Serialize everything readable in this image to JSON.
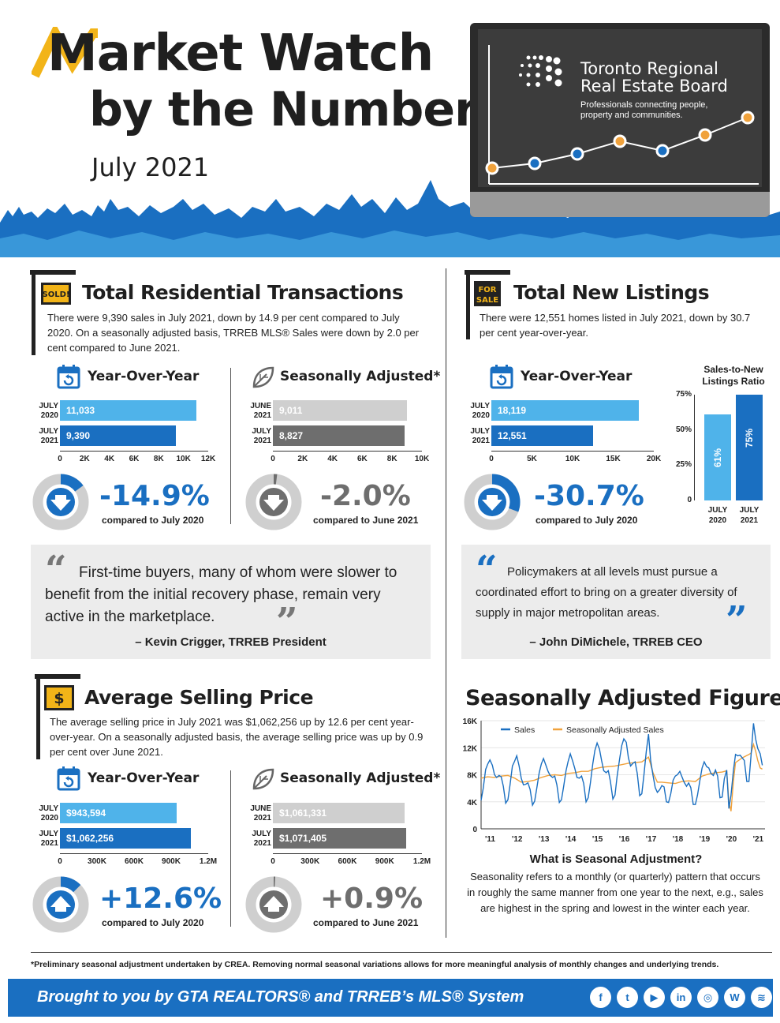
{
  "header": {
    "title_line1": "Market Watch",
    "title_line2": "by the Numbers",
    "month": "July 2021",
    "board_name_line1": "Toronto Regional",
    "board_name_line2": "Real Estate Board",
    "tagline_line1": "Professionals connecting people,",
    "tagline_line2": "property and communities."
  },
  "transactions": {
    "badge": "SOLD!",
    "title": "Total Residential Transactions",
    "description": "There were 9,390 sales in July 2021, down by 14.9 per cent compared to July 2020. On a seasonally adjusted basis, TRREB MLS® Sales were down by 2.0 per cent compared to June 2021.",
    "yoy": {
      "title": "Year-Over-Year",
      "rows": [
        {
          "label_top": "JULY",
          "label_bottom": "2020",
          "value_text": "11,033",
          "value": 11033
        },
        {
          "label_top": "JULY",
          "label_bottom": "2021",
          "value_text": "9,390",
          "value": 9390
        }
      ],
      "ticks": [
        "0",
        "2K",
        "4K",
        "6K",
        "8K",
        "10K",
        "12K"
      ],
      "max": 12000,
      "pct": "-14.9%",
      "compare": "compared to July 2020"
    },
    "sa": {
      "title": "Seasonally Adjusted*",
      "rows": [
        {
          "label_top": "JUNE",
          "label_bottom": "2021",
          "value_text": "9,011",
          "value": 9011
        },
        {
          "label_top": "JULY",
          "label_bottom": "2021",
          "value_text": "8,827",
          "value": 8827
        }
      ],
      "ticks": [
        "0",
        "2K",
        "4K",
        "6K",
        "8K",
        "10K"
      ],
      "max": 10000,
      "pct": "-2.0%",
      "compare": "compared to June 2021"
    }
  },
  "listings": {
    "badge_top": "FOR",
    "badge_bottom": "SALE",
    "title": "Total New Listings",
    "description": "There were 12,551 homes listed in July 2021, down by 30.7 per cent year-over-year.",
    "yoy": {
      "title": "Year-Over-Year",
      "rows": [
        {
          "label_top": "JULY",
          "label_bottom": "2020",
          "value_text": "18,119",
          "value": 18119
        },
        {
          "label_top": "JULY",
          "label_bottom": "2021",
          "value_text": "12,551",
          "value": 12551
        }
      ],
      "ticks": [
        "0",
        "5K",
        "10K",
        "15K",
        "20K"
      ],
      "max": 20000,
      "pct": "-30.7%",
      "compare": "compared to July 2020"
    },
    "ratio": {
      "title_line1": "Sales-to-New",
      "title_line2": "Listings Ratio",
      "yticks": [
        "75%",
        "50%",
        "25%",
        "0"
      ],
      "bars": [
        {
          "label_top": "JULY",
          "label_bottom": "2020",
          "value_text": "61%",
          "value": 61
        },
        {
          "label_top": "JULY",
          "label_bottom": "2021",
          "value_text": "75%",
          "value": 75
        }
      ]
    }
  },
  "quotes": {
    "q1_text": "First-time buyers, many of whom were slower to benefit from the initial recovery phase, remain very active in the marketplace.",
    "q1_author": "– Kevin Crigger, TRREB President",
    "q2_text": "Policymakers at all levels must pursue a coordinated effort to bring on a greater diversity of supply in major metropolitan areas.",
    "q2_author": "– John DiMichele, TRREB CEO"
  },
  "price": {
    "badge": "$",
    "title": "Average Selling Price",
    "description": "The average selling price in July 2021 was $1,062,256 up by 12.6 per cent year-over-year. On a seasonally adjusted basis, the average selling price was up by 0.9 per cent over June 2021.",
    "yoy": {
      "title": "Year-Over-Year",
      "rows": [
        {
          "label_top": "JULY",
          "label_bottom": "2020",
          "value_text": "$943,594",
          "value": 943594
        },
        {
          "label_top": "JULY",
          "label_bottom": "2021",
          "value_text": "$1,062,256",
          "value": 1062256
        }
      ],
      "ticks": [
        "0",
        "300K",
        "600K",
        "900K",
        "1.2M"
      ],
      "max": 1200000,
      "pct": "+12.6%",
      "compare": "compared to July 2020"
    },
    "sa": {
      "title": "Seasonally Adjusted*",
      "rows": [
        {
          "label_top": "JUNE",
          "label_bottom": "2021",
          "value_text": "$1,061,331",
          "value": 1061331
        },
        {
          "label_top": "JULY",
          "label_bottom": "2021",
          "value_text": "$1,071,405",
          "value": 1071405
        }
      ],
      "ticks": [
        "0",
        "300K",
        "600K",
        "900K",
        "1.2M"
      ],
      "max": 1200000,
      "pct": "+0.9%",
      "compare": "compared to June 2021"
    }
  },
  "seasonal": {
    "title": "Seasonally Adjusted Figures",
    "explain_title": "What is Seasonal Adjustment?",
    "explain_text": "Seasonality refers to a monthly (or quarterly) pattern that occurs in roughly the same manner from one year to the next, e.g., sales are highest in the spring and lowest in the winter each year."
  },
  "chart_data": {
    "type": "line",
    "title": "Seasonally Adjusted Figures",
    "x_ticks": [
      "'11",
      "'12",
      "'13",
      "'14",
      "'15",
      "'16",
      "'17",
      "'18",
      "'19",
      "'20",
      "'21"
    ],
    "y_ticks": [
      "0",
      "4K",
      "8K",
      "12K",
      "16K"
    ],
    "ylim": [
      0,
      16000
    ],
    "xlim": [
      2011,
      2021.6
    ],
    "legend_position": "top-left",
    "series": [
      {
        "name": "Sales",
        "color": "#1a6fc1",
        "x": [
          2011.0,
          2011.08,
          2011.17,
          2011.25,
          2011.33,
          2011.42,
          2011.5,
          2011.58,
          2011.67,
          2011.75,
          2011.83,
          2011.92,
          2012.0,
          2012.08,
          2012.17,
          2012.25,
          2012.33,
          2012.42,
          2012.5,
          2012.58,
          2012.67,
          2012.75,
          2012.83,
          2012.92,
          2013.0,
          2013.08,
          2013.17,
          2013.25,
          2013.33,
          2013.42,
          2013.5,
          2013.58,
          2013.67,
          2013.75,
          2013.83,
          2013.92,
          2014.0,
          2014.08,
          2014.17,
          2014.25,
          2014.33,
          2014.42,
          2014.5,
          2014.58,
          2014.67,
          2014.75,
          2014.83,
          2014.92,
          2015.0,
          2015.08,
          2015.17,
          2015.25,
          2015.33,
          2015.42,
          2015.5,
          2015.58,
          2015.67,
          2015.75,
          2015.83,
          2015.92,
          2016.0,
          2016.08,
          2016.17,
          2016.25,
          2016.33,
          2016.42,
          2016.5,
          2016.58,
          2016.67,
          2016.75,
          2016.83,
          2016.92,
          2017.0,
          2017.08,
          2017.17,
          2017.25,
          2017.33,
          2017.42,
          2017.5,
          2017.58,
          2017.67,
          2017.75,
          2017.83,
          2017.92,
          2018.0,
          2018.08,
          2018.17,
          2018.25,
          2018.33,
          2018.42,
          2018.5,
          2018.58,
          2018.67,
          2018.75,
          2018.83,
          2018.92,
          2019.0,
          2019.08,
          2019.17,
          2019.25,
          2019.33,
          2019.42,
          2019.5,
          2019.58,
          2019.67,
          2019.75,
          2019.83,
          2019.92,
          2020.0,
          2020.08,
          2020.17,
          2020.25,
          2020.33,
          2020.42,
          2020.5,
          2020.58,
          2020.67,
          2020.75,
          2020.83,
          2020.92,
          2021.0,
          2021.08,
          2021.17,
          2021.25,
          2021.33,
          2021.42,
          2021.5
        ],
        "values": [
          4200,
          6000,
          8800,
          9600,
          10200,
          9400,
          8000,
          7600,
          7900,
          7700,
          6300,
          3800,
          4300,
          6500,
          9300,
          10000,
          10800,
          9300,
          7500,
          6500,
          6600,
          6800,
          5800,
          3500,
          4100,
          6000,
          8300,
          9600,
          10400,
          9400,
          8500,
          7900,
          7600,
          7800,
          6500,
          3900,
          4300,
          6200,
          8600,
          10000,
          11100,
          10000,
          8900,
          7600,
          7500,
          7800,
          6700,
          4000,
          4600,
          6800,
          9600,
          11600,
          12700,
          11800,
          10100,
          8600,
          8300,
          8600,
          7000,
          4400,
          5000,
          7800,
          10300,
          12300,
          13300,
          12800,
          10500,
          9300,
          9700,
          9900,
          8200,
          4900,
          5200,
          8000,
          11500,
          14000,
          10100,
          7900,
          6100,
          5400,
          5800,
          6400,
          6200,
          4000,
          3900,
          5200,
          7200,
          7800,
          8000,
          8500,
          7700,
          6900,
          6300,
          6800,
          6100,
          3600,
          3600,
          5000,
          7200,
          9000,
          9900,
          9200,
          9000,
          8200,
          7900,
          8700,
          7800,
          4600,
          4700,
          7400,
          8700,
          3000,
          5000,
          8600,
          11000,
          10800,
          10900,
          10500,
          10100,
          7000,
          7000,
          10900,
          15600,
          13300,
          11900,
          11100,
          9400
        ]
      },
      {
        "name": "Seasonally Adjusted Sales",
        "color": "#f0a23c",
        "x": [
          2011.0,
          2011.25,
          2011.5,
          2011.75,
          2012.0,
          2012.25,
          2012.5,
          2012.75,
          2013.0,
          2013.25,
          2013.5,
          2013.75,
          2014.0,
          2014.25,
          2014.5,
          2014.75,
          2015.0,
          2015.25,
          2015.5,
          2015.75,
          2016.0,
          2016.25,
          2016.5,
          2016.75,
          2017.0,
          2017.25,
          2017.42,
          2017.58,
          2017.75,
          2018.0,
          2018.25,
          2018.5,
          2018.75,
          2019.0,
          2019.25,
          2019.5,
          2019.75,
          2020.0,
          2020.17,
          2020.25,
          2020.33,
          2020.42,
          2020.5,
          2020.75,
          2021.0,
          2021.08,
          2021.17,
          2021.25,
          2021.33,
          2021.42,
          2021.5
        ],
        "values": [
          7500,
          7700,
          7600,
          7800,
          7900,
          7500,
          6900,
          7000,
          7200,
          7600,
          7900,
          8000,
          7900,
          8200,
          8300,
          8500,
          8500,
          8900,
          9100,
          9200,
          9300,
          9500,
          9700,
          9800,
          9900,
          10600,
          8300,
          6900,
          6900,
          6800,
          6700,
          7000,
          7100,
          7000,
          7800,
          8100,
          8300,
          8400,
          8600,
          4000,
          2600,
          7000,
          9800,
          10500,
          11000,
          11200,
          12500,
          11500,
          10100,
          9000,
          8827
        ]
      }
    ]
  },
  "footer": {
    "footnote": "*Preliminary seasonal adjustment undertaken by CREA. Removing normal seasonal variations allows for more meaningful analysis of monthly changes and underlying trends.",
    "brought_by": "Brought to you by GTA REALTORS® and TRREB’s MLS® System",
    "social": [
      {
        "icon": "facebook-icon",
        "glyph": "f"
      },
      {
        "icon": "twitter-icon",
        "glyph": "t"
      },
      {
        "icon": "youtube-icon",
        "glyph": "▶"
      },
      {
        "icon": "linkedin-icon",
        "glyph": "in"
      },
      {
        "icon": "instagram-icon",
        "glyph": "◎"
      },
      {
        "icon": "wordpress-icon",
        "glyph": "W"
      },
      {
        "icon": "rss-icon",
        "glyph": "≋"
      }
    ]
  },
  "colors": {
    "accent_blue": "#1a6fc1",
    "light_blue": "#4fb3ea",
    "logo_yellow": "#f2b418",
    "gray_light": "#cfcfcf",
    "gray_dark": "#6e6e6e",
    "orange": "#f0a23c"
  }
}
